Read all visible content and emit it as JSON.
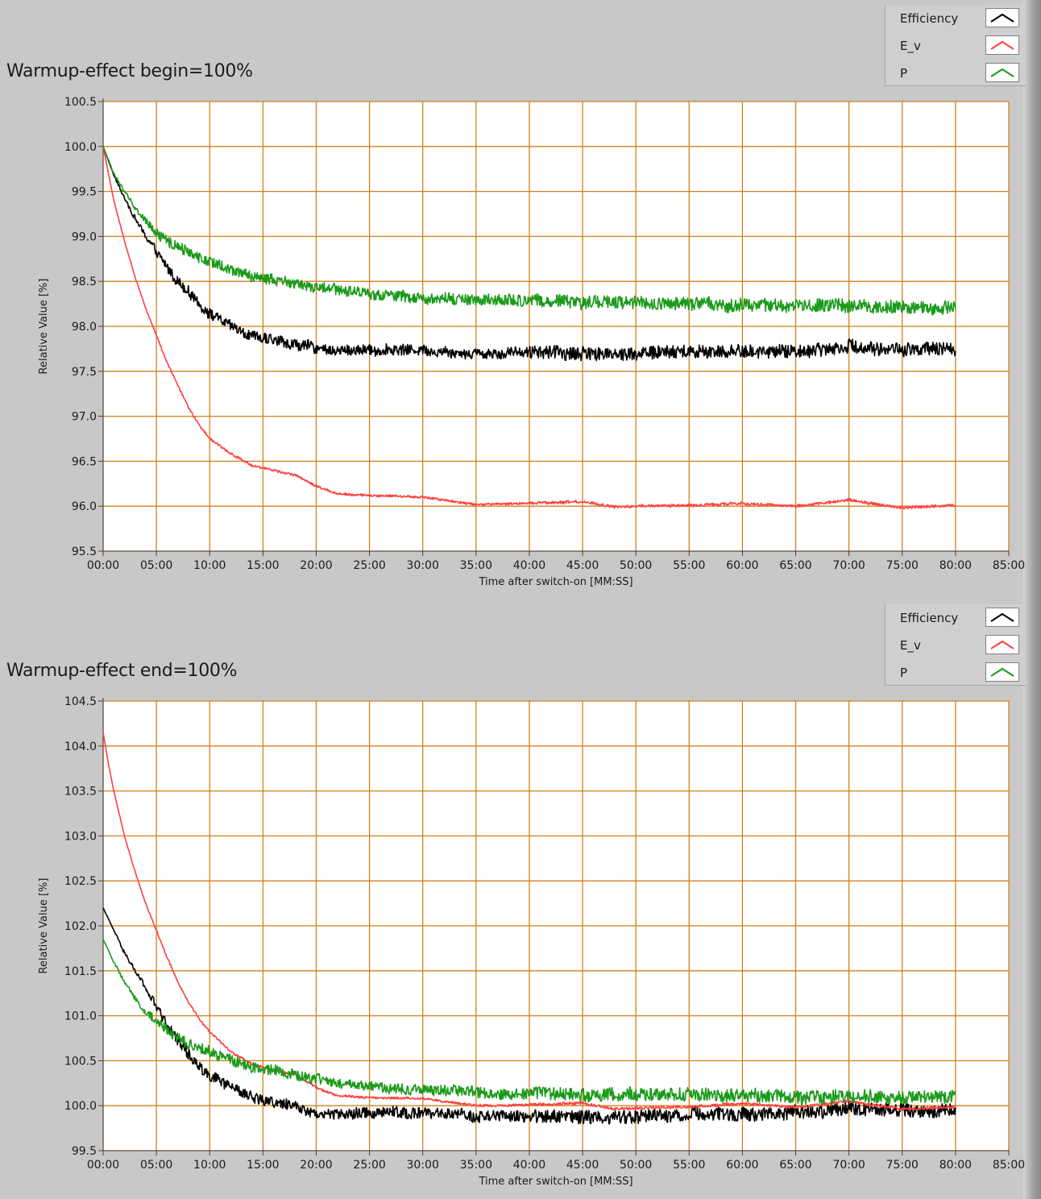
{
  "chart_data": [
    {
      "type": "line",
      "title": "Warmup-effect begin=100%",
      "xlabel": "Time after switch-on [MM:SS]",
      "ylabel": "Relative Value [%]",
      "x_unit": "minutes",
      "xlim": [
        0,
        85
      ],
      "ylim": [
        95.5,
        100.5
      ],
      "xticks": [
        "00:00",
        "05:00",
        "10:00",
        "15:00",
        "20:00",
        "25:00",
        "30:00",
        "35:00",
        "40:00",
        "45:00",
        "50:00",
        "55:00",
        "60:00",
        "65:00",
        "70:00",
        "75:00",
        "80:00",
        "85:00"
      ],
      "yticks": [
        "95.5",
        "96.0",
        "96.5",
        "97.0",
        "97.5",
        "98.0",
        "98.5",
        "99.0",
        "99.5",
        "100.0",
        "100.5"
      ],
      "grid": true,
      "legend_position": "top-right",
      "series": [
        {
          "name": "Efficiency",
          "color": "#000000",
          "noise": 0.06,
          "x": [
            0,
            1,
            2,
            3,
            4,
            5,
            6,
            7,
            8,
            9,
            10,
            12,
            14,
            16,
            18,
            20,
            22,
            25,
            30,
            35,
            40,
            45,
            50,
            55,
            60,
            65,
            70,
            75,
            80
          ],
          "y": [
            100.0,
            99.68,
            99.43,
            99.2,
            99.0,
            98.82,
            98.65,
            98.5,
            98.37,
            98.25,
            98.15,
            98.0,
            97.9,
            97.84,
            97.8,
            97.76,
            97.73,
            97.74,
            97.74,
            97.7,
            97.72,
            97.7,
            97.7,
            97.72,
            97.72,
            97.72,
            97.78,
            97.74,
            97.74
          ]
        },
        {
          "name": "E_v",
          "color": "#ff4040",
          "noise": 0.012,
          "x": [
            0,
            1,
            2,
            3,
            4,
            5,
            6,
            7,
            8,
            9,
            10,
            12,
            14,
            16,
            18,
            20,
            22,
            25,
            30,
            35,
            40,
            45,
            48,
            50,
            55,
            60,
            65,
            70,
            75,
            80
          ],
          "y": [
            100.0,
            99.4,
            98.95,
            98.55,
            98.2,
            97.9,
            97.6,
            97.35,
            97.1,
            96.9,
            96.75,
            96.58,
            96.45,
            96.4,
            96.35,
            96.22,
            96.14,
            96.12,
            96.1,
            96.02,
            96.03,
            96.05,
            95.99,
            96.0,
            96.01,
            96.03,
            96.0,
            96.07,
            95.98,
            96.01
          ]
        },
        {
          "name": "P",
          "color": "#1a9a1a",
          "noise": 0.06,
          "x": [
            0,
            1,
            2,
            3,
            4,
            5,
            6,
            8,
            10,
            12,
            14,
            16,
            18,
            20,
            22,
            25,
            30,
            35,
            40,
            45,
            50,
            55,
            60,
            65,
            70,
            75,
            80
          ],
          "y": [
            100.0,
            99.7,
            99.5,
            99.32,
            99.18,
            99.05,
            98.95,
            98.82,
            98.72,
            98.62,
            98.55,
            98.52,
            98.48,
            98.43,
            98.4,
            98.36,
            98.32,
            98.29,
            98.29,
            98.26,
            98.25,
            98.25,
            98.24,
            98.23,
            98.23,
            98.22,
            98.2
          ]
        }
      ],
      "legend": [
        {
          "label": "Efficiency",
          "color": "#000000"
        },
        {
          "label": "E_v",
          "color": "#ff4040"
        },
        {
          "label": "P",
          "color": "#1a9a1a"
        }
      ]
    },
    {
      "type": "line",
      "title": "Warmup-effect end=100%",
      "xlabel": "Time after switch-on [MM:SS]",
      "ylabel": "Relative Value [%]",
      "x_unit": "minutes",
      "xlim": [
        0,
        85
      ],
      "ylim": [
        99.5,
        104.5
      ],
      "xticks": [
        "00:00",
        "05:00",
        "10:00",
        "15:00",
        "20:00",
        "25:00",
        "30:00",
        "35:00",
        "40:00",
        "45:00",
        "50:00",
        "55:00",
        "60:00",
        "65:00",
        "70:00",
        "75:00",
        "80:00",
        "85:00"
      ],
      "yticks": [
        "99.5",
        "100.0",
        "100.5",
        "101.0",
        "101.5",
        "102.0",
        "102.5",
        "103.0",
        "103.5",
        "104.0",
        "104.5"
      ],
      "grid": true,
      "legend_position": "top-right",
      "series": [
        {
          "name": "Efficiency",
          "color": "#000000",
          "noise": 0.06,
          "x": [
            0,
            1,
            2,
            3,
            4,
            5,
            6,
            7,
            8,
            9,
            10,
            12,
            14,
            16,
            18,
            20,
            22,
            25,
            30,
            35,
            40,
            45,
            50,
            55,
            60,
            65,
            70,
            75,
            80
          ],
          "y": [
            102.2,
            101.95,
            101.7,
            101.5,
            101.3,
            101.1,
            100.9,
            100.72,
            100.56,
            100.43,
            100.33,
            100.2,
            100.1,
            100.04,
            99.99,
            99.93,
            99.9,
            99.92,
            99.92,
            99.88,
            99.88,
            99.88,
            99.88,
            99.9,
            99.9,
            99.93,
            99.97,
            99.95,
            99.95
          ]
        },
        {
          "name": "E_v",
          "color": "#ff4040",
          "noise": 0.012,
          "x": [
            0,
            0.5,
            1,
            2,
            3,
            4,
            5,
            6,
            7,
            8,
            9,
            10,
            12,
            14,
            16,
            18,
            20,
            22,
            25,
            30,
            35,
            40,
            45,
            48,
            50,
            55,
            60,
            65,
            70,
            75,
            80
          ],
          "y": [
            104.15,
            103.8,
            103.5,
            103.0,
            102.6,
            102.25,
            101.95,
            101.65,
            101.38,
            101.15,
            100.97,
            100.82,
            100.6,
            100.46,
            100.4,
            100.35,
            100.2,
            100.11,
            100.09,
            100.08,
            100.0,
            100.01,
            100.03,
            99.96,
            99.97,
            99.99,
            100.02,
            99.98,
            100.05,
            99.96,
            99.99
          ]
        },
        {
          "name": "P",
          "color": "#1a9a1a",
          "noise": 0.06,
          "x": [
            0,
            1,
            2,
            3,
            4,
            5,
            6,
            8,
            10,
            12,
            14,
            16,
            18,
            20,
            22,
            25,
            30,
            35,
            40,
            45,
            50,
            55,
            60,
            65,
            70,
            75,
            80
          ],
          "y": [
            101.85,
            101.6,
            101.38,
            101.2,
            101.05,
            100.94,
            100.83,
            100.7,
            100.6,
            100.5,
            100.43,
            100.39,
            100.34,
            100.29,
            100.25,
            100.21,
            100.18,
            100.15,
            100.14,
            100.12,
            100.12,
            100.12,
            100.11,
            100.1,
            100.1,
            100.1,
            100.1
          ]
        }
      ],
      "legend": [
        {
          "label": "Efficiency",
          "color": "#000000"
        },
        {
          "label": "E_v",
          "color": "#ff4040"
        },
        {
          "label": "P",
          "color": "#1a9a1a"
        }
      ]
    }
  ]
}
